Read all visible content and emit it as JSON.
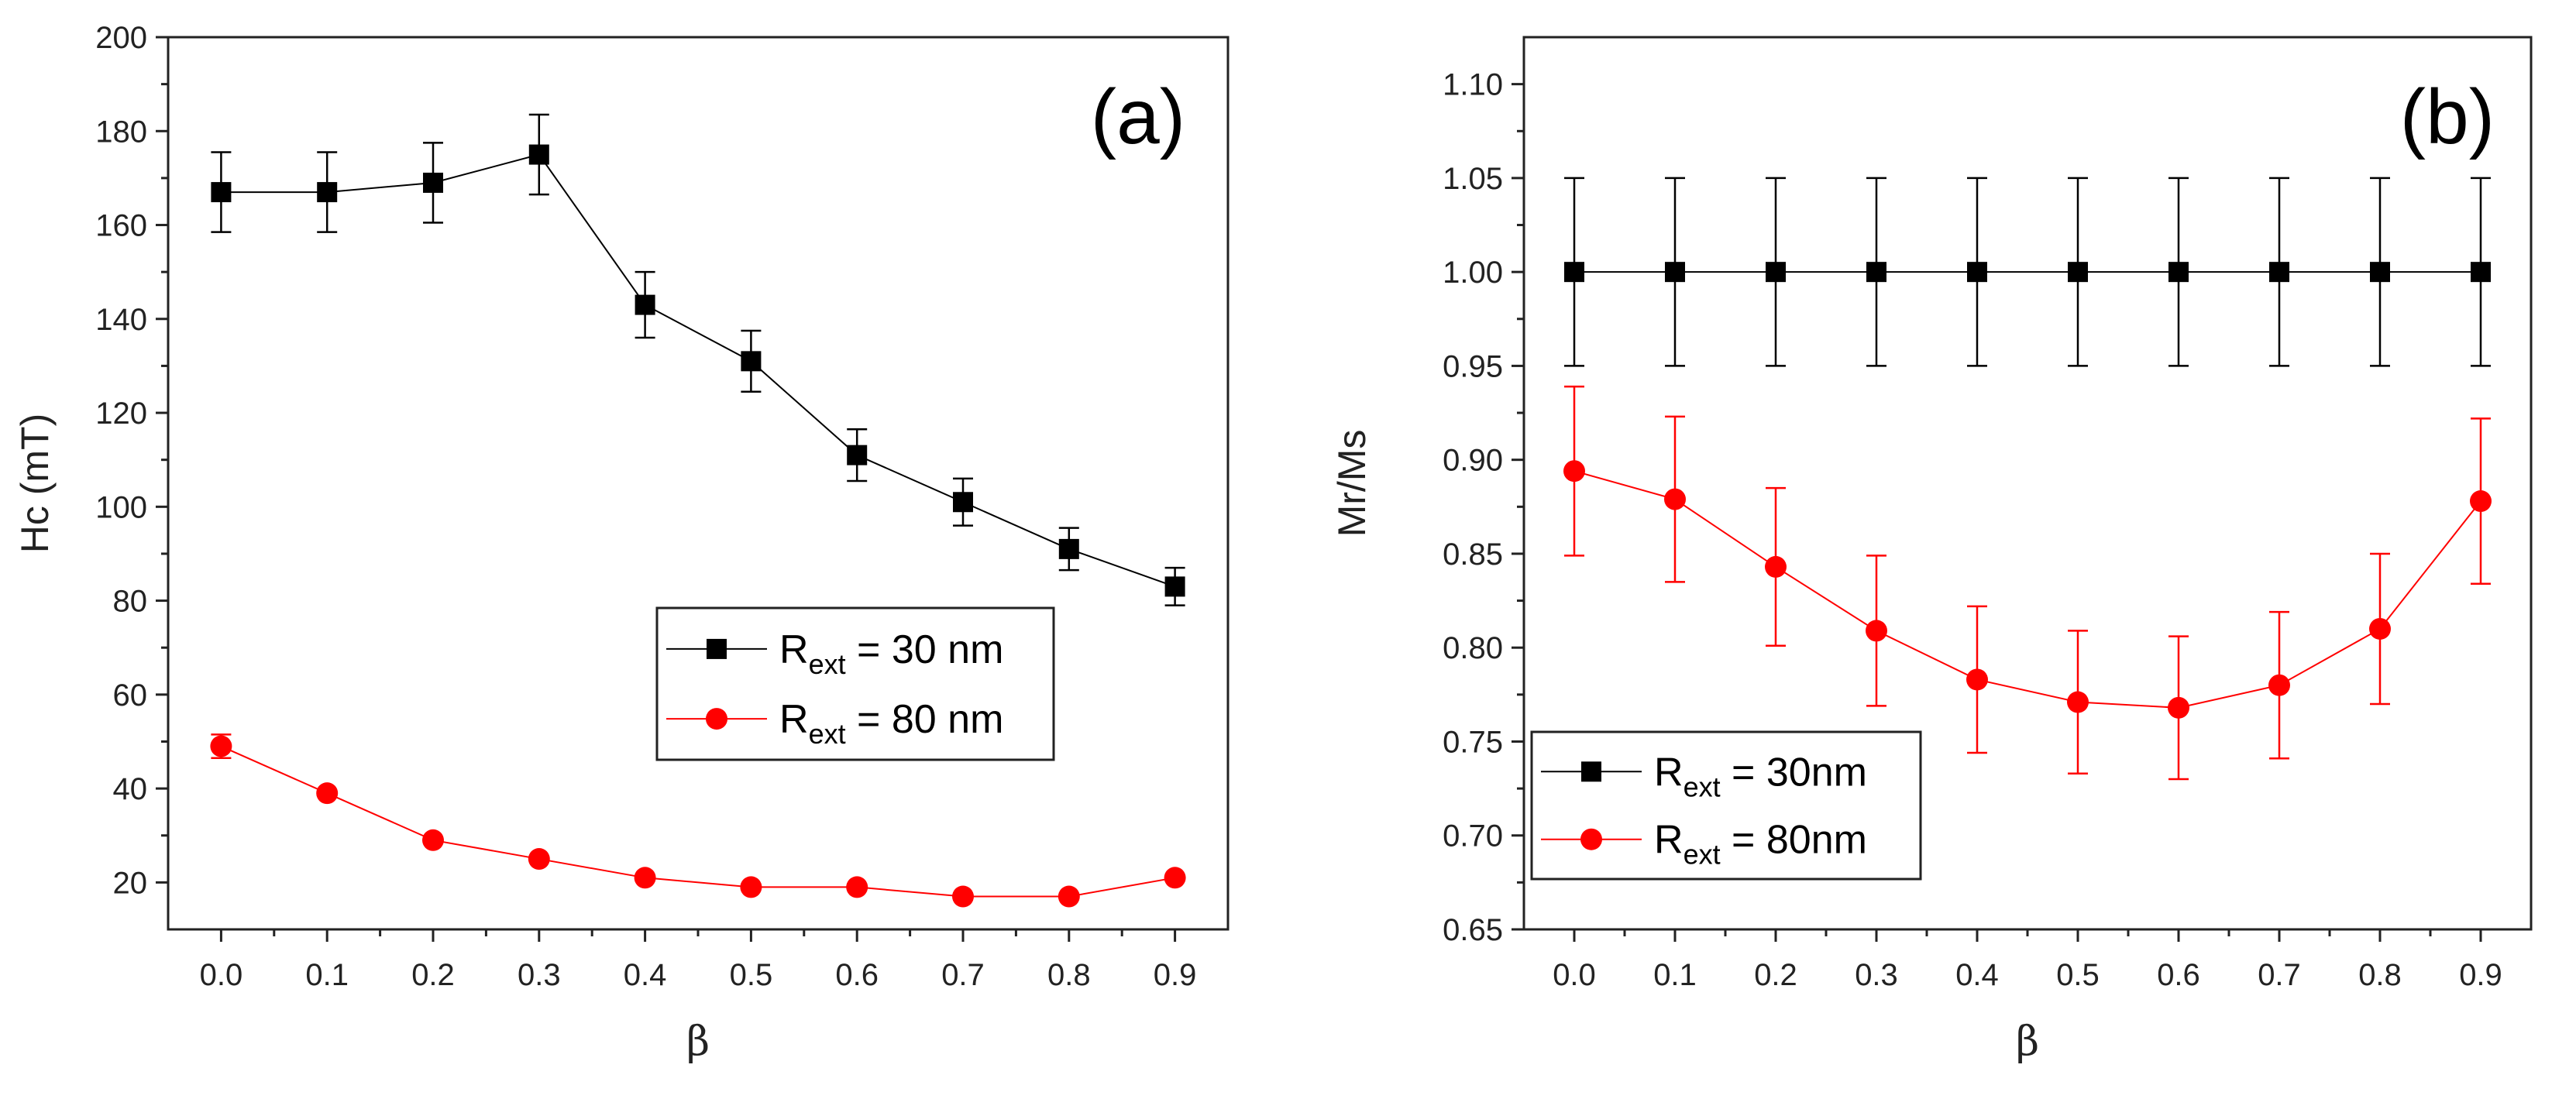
{
  "chart_data": [
    {
      "type": "line",
      "panel_label": "(a)",
      "xlabel": "β",
      "ylabel": "Hc (mT)",
      "xlim": [
        -0.05,
        0.95
      ],
      "ylim": [
        10,
        200
      ],
      "x_ticks": [
        "0.0",
        "0.1",
        "0.2",
        "0.3",
        "0.4",
        "0.5",
        "0.6",
        "0.7",
        "0.8",
        "0.9"
      ],
      "y_ticks": [
        "20",
        "40",
        "60",
        "80",
        "100",
        "120",
        "140",
        "160",
        "180",
        "200"
      ],
      "legend_position": "middle-right",
      "x": [
        0.0,
        0.1,
        0.2,
        0.3,
        0.4,
        0.5,
        0.6,
        0.7,
        0.8,
        0.9
      ],
      "series": [
        {
          "name": "R_ext = 30 nm",
          "legend_main": "R",
          "legend_sub": "ext",
          "legend_rest": " = 30 nm",
          "color": "#000000",
          "marker": "square",
          "values": [
            167,
            167,
            169,
            175,
            143,
            131,
            111,
            101,
            91,
            83
          ],
          "errors": [
            8.5,
            8.5,
            8.5,
            8.5,
            7.0,
            6.5,
            5.5,
            5.0,
            4.5,
            4.0
          ]
        },
        {
          "name": "R_ext = 80 nm",
          "legend_main": "R",
          "legend_sub": "ext",
          "legend_rest": " = 80 nm",
          "color": "#ff0000",
          "marker": "circle",
          "values": [
            49,
            39,
            29,
            25,
            21,
            19,
            19,
            17,
            17,
            21
          ],
          "errors": [
            2.5,
            0,
            0,
            0,
            0,
            0,
            0,
            0,
            0,
            0
          ]
        }
      ]
    },
    {
      "type": "line",
      "panel_label": "(b)",
      "xlabel": "β",
      "ylabel": "Mr/Ms",
      "xlim": [
        -0.05,
        0.95
      ],
      "ylim": [
        0.65,
        1.125
      ],
      "x_ticks": [
        "0.0",
        "0.1",
        "0.2",
        "0.3",
        "0.4",
        "0.5",
        "0.6",
        "0.7",
        "0.8",
        "0.9"
      ],
      "y_ticks": [
        "0.65",
        "0.70",
        "0.75",
        "0.80",
        "0.85",
        "0.90",
        "0.95",
        "1.00",
        "1.05",
        "1.10"
      ],
      "legend_position": "bottom-left",
      "x": [
        0.0,
        0.1,
        0.2,
        0.3,
        0.4,
        0.5,
        0.6,
        0.7,
        0.8,
        0.9
      ],
      "series": [
        {
          "name": "R ext = 30nm",
          "legend_main": "R",
          "legend_sub": "ext",
          "legend_rest": " = 30nm",
          "color": "#000000",
          "marker": "square",
          "values": [
            1.0,
            1.0,
            1.0,
            1.0,
            1.0,
            1.0,
            1.0,
            1.0,
            1.0,
            1.0
          ],
          "errors": [
            0.05,
            0.05,
            0.05,
            0.05,
            0.05,
            0.05,
            0.05,
            0.05,
            0.05,
            0.05
          ]
        },
        {
          "name": "R ext = 80nm",
          "legend_main": "R",
          "legend_sub": "ext",
          "legend_rest": " = 80nm",
          "color": "#ff0000",
          "marker": "circle",
          "values": [
            0.894,
            0.879,
            0.843,
            0.809,
            0.783,
            0.771,
            0.768,
            0.78,
            0.81,
            0.878
          ],
          "errors": [
            0.045,
            0.044,
            0.042,
            0.04,
            0.039,
            0.038,
            0.038,
            0.039,
            0.04,
            0.044
          ]
        }
      ]
    }
  ]
}
